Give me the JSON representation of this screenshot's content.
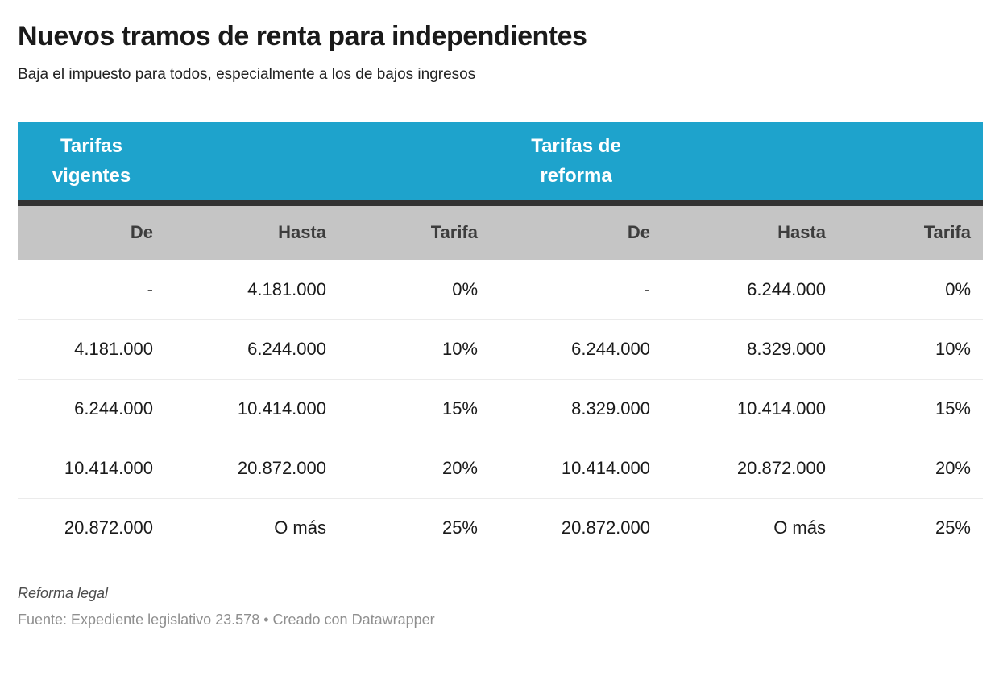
{
  "header": {
    "title": "Nuevos tramos de renta para independientes",
    "subtitle": "Baja el impuesto para todos, especialmente a los de bajos ingresos"
  },
  "table": {
    "group_headers": [
      {
        "label": "Tarifas vigentes"
      },
      {
        "label": "Tarifas de reforma"
      }
    ],
    "columns": [
      "De",
      "Hasta",
      "Tarifa",
      "De",
      "Hasta",
      "Tarifa"
    ],
    "rows": [
      [
        "-",
        "4.181.000",
        "0%",
        "-",
        "6.244.000",
        "0%"
      ],
      [
        "4.181.000",
        "6.244.000",
        "10%",
        "6.244.000",
        "8.329.000",
        "10%"
      ],
      [
        "6.244.000",
        "10.414.000",
        "15%",
        "8.329.000",
        "10.414.000",
        "15%"
      ],
      [
        "10.414.000",
        "20.872.000",
        "20%",
        "10.414.000",
        "20.872.000",
        "20%"
      ],
      [
        "20.872.000",
        "O más",
        "25%",
        "20.872.000",
        "O más",
        "25%"
      ]
    ]
  },
  "footer": {
    "byline": "Reforma legal",
    "source": "Fuente: Expediente legislativo 23.578 • Creado con Datawrapper"
  },
  "colors": {
    "header_band": "#1ea3cc",
    "header_band_text": "#ffffff",
    "divider": "#333333",
    "subheader_bg": "#c5c5c5",
    "subheader_text": "#3d3d3d",
    "row_border": "#ebebeb",
    "text_main": "#1a1a1a"
  },
  "chart_data": {
    "type": "table",
    "title": "Nuevos tramos de renta para independientes",
    "subtitle": "Baja el impuesto para todos, especialmente a los de bajos ingresos",
    "column_groups": [
      "Tarifas vigentes",
      "Tarifas de reforma"
    ],
    "columns": [
      "De",
      "Hasta",
      "Tarifa",
      "De",
      "Hasta",
      "Tarifa"
    ],
    "rows": [
      [
        "-",
        "4.181.000",
        "0%",
        "-",
        "6.244.000",
        "0%"
      ],
      [
        "4.181.000",
        "6.244.000",
        "10%",
        "6.244.000",
        "8.329.000",
        "10%"
      ],
      [
        "6.244.000",
        "10.414.000",
        "15%",
        "8.329.000",
        "10.414.000",
        "15%"
      ],
      [
        "10.414.000",
        "20.872.000",
        "20%",
        "10.414.000",
        "20.872.000",
        "20%"
      ],
      [
        "20.872.000",
        "O más",
        "25%",
        "20.872.000",
        "O más",
        "25%"
      ]
    ],
    "byline": "Reforma legal",
    "source": "Fuente: Expediente legislativo 23.578 • Creado con Datawrapper"
  }
}
